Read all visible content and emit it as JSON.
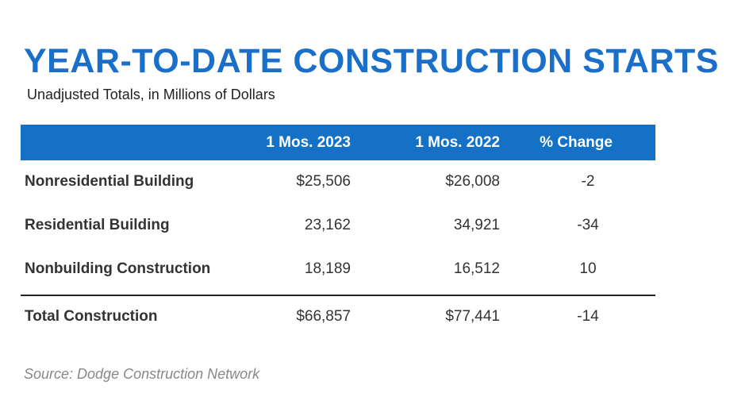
{
  "title": "YEAR-TO-DATE CONSTRUCTION STARTS",
  "subtitle": "Unadjusted Totals, in Millions of Dollars",
  "table": {
    "headers": [
      "",
      "1 Mos. 2023",
      "1 Mos. 2022",
      "% Change"
    ],
    "rows": [
      {
        "label": "Nonresidential Building",
        "a": "$25,506",
        "b": "$26,008",
        "c": "-2"
      },
      {
        "label": "Residential Building",
        "a": "23,162",
        "b": "34,921",
        "c": "-34"
      },
      {
        "label": "Nonbuilding Construction",
        "a": "18,189",
        "b": "16,512",
        "c": "10"
      }
    ],
    "total": {
      "label": "Total Construction",
      "a": "$66,857",
      "b": "$77,441",
      "c": "-14"
    }
  },
  "source": "Source: Dodge Construction Network",
  "colors": {
    "title": "#1a6fc9",
    "header_bg": "#1471c6"
  }
}
